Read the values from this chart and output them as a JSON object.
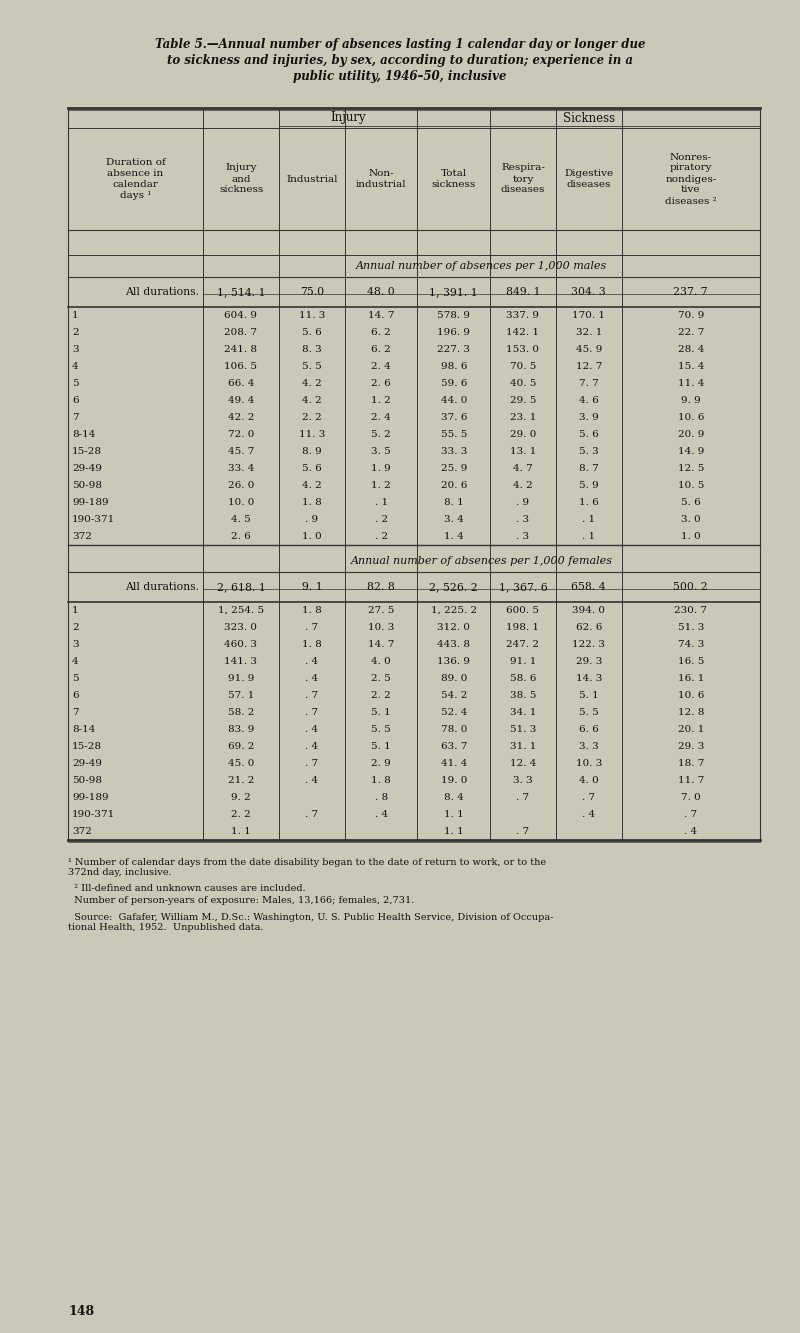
{
  "title_line1": "Table 5.—Annual number of absences lasting 1 calendar day or longer due",
  "title_line2": "to sickness and injuries, by sex, according to duration; experience in a",
  "title_line3": "public utility, 1946–50, inclusive",
  "col_headers_row1_injury": "Injury",
  "col_headers_row1_sickness": "Sickness",
  "col_headers": [
    "Duration of\nabsence in\ncalendar\ndays ¹",
    "Injury\nand\nsickness",
    "Industrial",
    "Non-\nindustrial",
    "Total\nsickness",
    "Respira-\ntory\ndiseases",
    "Digestive\ndiseases",
    "Nonres-\npiratory\nnondiges-\ntive\ndiseases ²"
  ],
  "males_header": "Annual number of absences per 1,000 males",
  "females_header": "Annual number of absences per 1,000 females",
  "males_rows": [
    [
      "All durations.",
      "1, 514. 1",
      "75.0",
      "48. 0",
      "1, 391. 1",
      "849. 1",
      "304. 3",
      "237. 7"
    ],
    [
      "1",
      "604. 9",
      "11. 3",
      "14. 7",
      "578. 9",
      "337. 9",
      "170. 1",
      "70. 9"
    ],
    [
      "2",
      "208. 7",
      "5. 6",
      "6. 2",
      "196. 9",
      "142. 1",
      "32. 1",
      "22. 7"
    ],
    [
      "3",
      "241. 8",
      "8. 3",
      "6. 2",
      "227. 3",
      "153. 0",
      "45. 9",
      "28. 4"
    ],
    [
      "4",
      "106. 5",
      "5. 5",
      "2. 4",
      "98. 6",
      "70. 5",
      "12. 7",
      "15. 4"
    ],
    [
      "5",
      "66. 4",
      "4. 2",
      "2. 6",
      "59. 6",
      "40. 5",
      "7. 7",
      "11. 4"
    ],
    [
      "6",
      "49. 4",
      "4. 2",
      "1. 2",
      "44. 0",
      "29. 5",
      "4. 6",
      "9. 9"
    ],
    [
      "7",
      "42. 2",
      "2. 2",
      "2. 4",
      "37. 6",
      "23. 1",
      "3. 9",
      "10. 6"
    ],
    [
      "8-14",
      "72. 0",
      "11. 3",
      "5. 2",
      "55. 5",
      "29. 0",
      "5. 6",
      "20. 9"
    ],
    [
      "15-28",
      "45. 7",
      "8. 9",
      "3. 5",
      "33. 3",
      "13. 1",
      "5. 3",
      "14. 9"
    ],
    [
      "29-49",
      "33. 4",
      "5. 6",
      "1. 9",
      "25. 9",
      "4. 7",
      "8. 7",
      "12. 5"
    ],
    [
      "50-98",
      "26. 0",
      "4. 2",
      "1. 2",
      "20. 6",
      "4. 2",
      "5. 9",
      "10. 5"
    ],
    [
      "99-189",
      "10. 0",
      "1. 8",
      ". 1",
      "8. 1",
      ". 9",
      "1. 6",
      "5. 6"
    ],
    [
      "190-371",
      "4. 5",
      ". 9",
      ". 2",
      "3. 4",
      ". 3",
      ". 1",
      "3. 0"
    ],
    [
      "372",
      "2. 6",
      "1. 0",
      ". 2",
      "1. 4",
      ". 3",
      ". 1",
      "1. 0"
    ]
  ],
  "females_rows": [
    [
      "All durations.",
      "2, 618. 1",
      "9. 1",
      "82. 8",
      "2, 526. 2",
      "1, 367. 6",
      "658. 4",
      "500. 2"
    ],
    [
      "1",
      "1, 254. 5",
      "1. 8",
      "27. 5",
      "1, 225. 2",
      "600. 5",
      "394. 0",
      "230. 7"
    ],
    [
      "2",
      "323. 0",
      ". 7",
      "10. 3",
      "312. 0",
      "198. 1",
      "62. 6",
      "51. 3"
    ],
    [
      "3",
      "460. 3",
      "1. 8",
      "14. 7",
      "443. 8",
      "247. 2",
      "122. 3",
      "74. 3"
    ],
    [
      "4",
      "141. 3",
      ". 4",
      "4. 0",
      "136. 9",
      "91. 1",
      "29. 3",
      "16. 5"
    ],
    [
      "5",
      "91. 9",
      ". 4",
      "2. 5",
      "89. 0",
      "58. 6",
      "14. 3",
      "16. 1"
    ],
    [
      "6",
      "57. 1",
      ". 7",
      "2. 2",
      "54. 2",
      "38. 5",
      "5. 1",
      "10. 6"
    ],
    [
      "7",
      "58. 2",
      ". 7",
      "5. 1",
      "52. 4",
      "34. 1",
      "5. 5",
      "12. 8"
    ],
    [
      "8-14",
      "83. 9",
      ". 4",
      "5. 5",
      "78. 0",
      "51. 3",
      "6. 6",
      "20. 1"
    ],
    [
      "15-28",
      "69. 2",
      ". 4",
      "5. 1",
      "63. 7",
      "31. 1",
      "3. 3",
      "29. 3"
    ],
    [
      "29-49",
      "45. 0",
      ". 7",
      "2. 9",
      "41. 4",
      "12. 4",
      "10. 3",
      "18. 7"
    ],
    [
      "50-98",
      "21. 2",
      ". 4",
      "1. 8",
      "19. 0",
      "3. 3",
      "4. 0",
      "11. 7"
    ],
    [
      "99-189",
      "9. 2",
      "",
      ". 8",
      "8. 4",
      ". 7",
      ". 7",
      "7. 0"
    ],
    [
      "190-371",
      "2. 2",
      ". 7",
      ". 4",
      "1. 1",
      "",
      ". 4",
      ". 7"
    ],
    [
      "372",
      "1. 1",
      "",
      "",
      "1. 1",
      ". 7",
      "",
      ". 4"
    ]
  ],
  "footnote1": "¹ Number of calendar days from the date disability began to the date of return to work, or to the\n372nd day, inclusive.",
  "footnote2": "  ² Ill-defined and unknown causes are included.",
  "footnote3": "  Number of person-years of exposure: Males, 13,166; females, 2,731.",
  "footnote4": "  Source:  Gafafer, William M., D.Sc.: Washington, U. S. Public Health Service, Division of Occupa-\ntional Health, 1952.  Unpublished data.",
  "page_number": "148",
  "bg_color": "#cbc8b8",
  "text_color": "#111111"
}
